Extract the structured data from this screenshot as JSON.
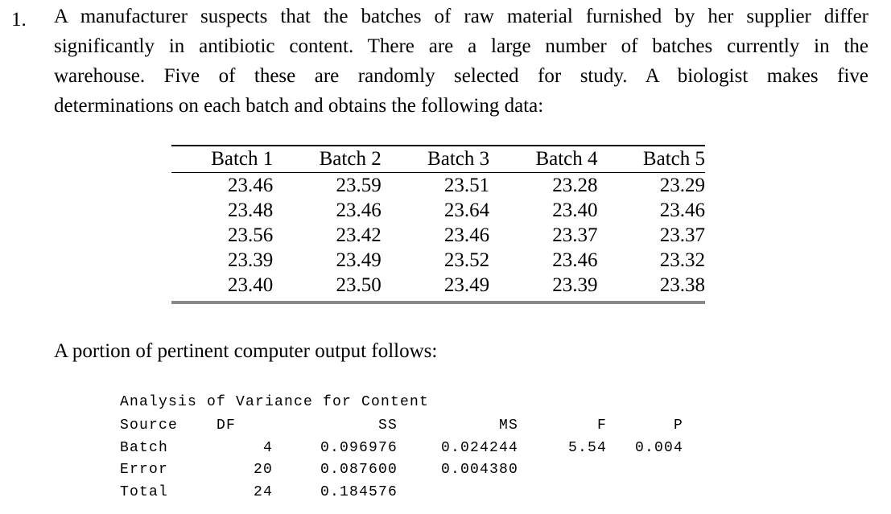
{
  "problem": {
    "number": "1.",
    "lines": [
      "A manufacturer suspects that the batches of raw material furnished by her supplier differ",
      "significantly in antibiotic content.  There are a large number of batches currently in the",
      "warehouse.  Five of these are randomly selected for study.  A biologist makes five",
      "determinations on each batch and obtains the following data:"
    ]
  },
  "data_table": {
    "headers": [
      "Batch 1",
      "Batch 2",
      "Batch 3",
      "Batch 4",
      "Batch 5"
    ],
    "rows": [
      [
        "23.46",
        "23.59",
        "23.51",
        "23.28",
        "23.29"
      ],
      [
        "23.48",
        "23.46",
        "23.64",
        "23.40",
        "23.46"
      ],
      [
        "23.56",
        "23.42",
        "23.46",
        "23.37",
        "23.37"
      ],
      [
        "23.39",
        "23.49",
        "23.52",
        "23.46",
        "23.32"
      ],
      [
        "23.40",
        "23.50",
        "23.49",
        "23.39",
        "23.38"
      ]
    ]
  },
  "output_intro": "A portion of pertinent computer output follows:",
  "anova": {
    "title": "Analysis of Variance for Content",
    "headers": [
      "Source",
      "DF",
      "SS",
      "MS",
      "F",
      "P"
    ],
    "rows": [
      [
        "Batch",
        "4",
        "0.096976",
        "0.024244",
        "5.54",
        "0.004"
      ],
      [
        "Error",
        "20",
        "0.087600",
        "0.004380",
        "",
        ""
      ],
      [
        "Total",
        "24",
        "0.184576",
        "",
        "",
        ""
      ]
    ]
  }
}
